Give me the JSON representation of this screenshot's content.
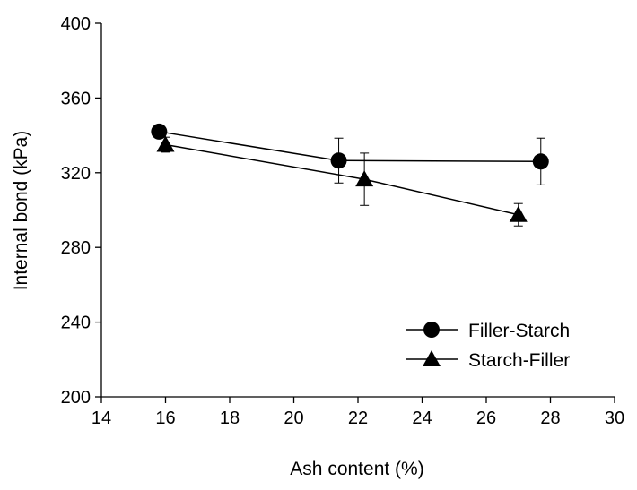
{
  "chart_data": {
    "type": "line",
    "title": "",
    "xlabel": "Ash content (%)",
    "ylabel": "Internal bond (kPa)",
    "xlim": [
      14,
      30
    ],
    "ylim": [
      200,
      400
    ],
    "xticks": [
      14,
      16,
      18,
      20,
      22,
      24,
      26,
      28,
      30
    ],
    "yticks": [
      200,
      240,
      280,
      320,
      360,
      400
    ],
    "xtick_labels": [
      "14",
      "16",
      "18",
      "20",
      "22",
      "24",
      "26",
      "28",
      "30"
    ],
    "ytick_labels": [
      "200",
      "240",
      "280",
      "320",
      "360",
      "400"
    ],
    "grid": false,
    "legend_position": "bottom-right",
    "series": [
      {
        "name": "Filler-Starch",
        "marker": "circle",
        "color": "#000000",
        "x": [
          15.8,
          21.4,
          27.7
        ],
        "y": [
          342,
          326.5,
          326
        ],
        "error": [
          null,
          12,
          12.5
        ]
      },
      {
        "name": "Starch-Filler",
        "marker": "triangle",
        "color": "#000000",
        "x": [
          16,
          22.2,
          27
        ],
        "y": [
          335,
          316.5,
          297.5
        ],
        "error": [
          4,
          14,
          6
        ]
      }
    ]
  }
}
